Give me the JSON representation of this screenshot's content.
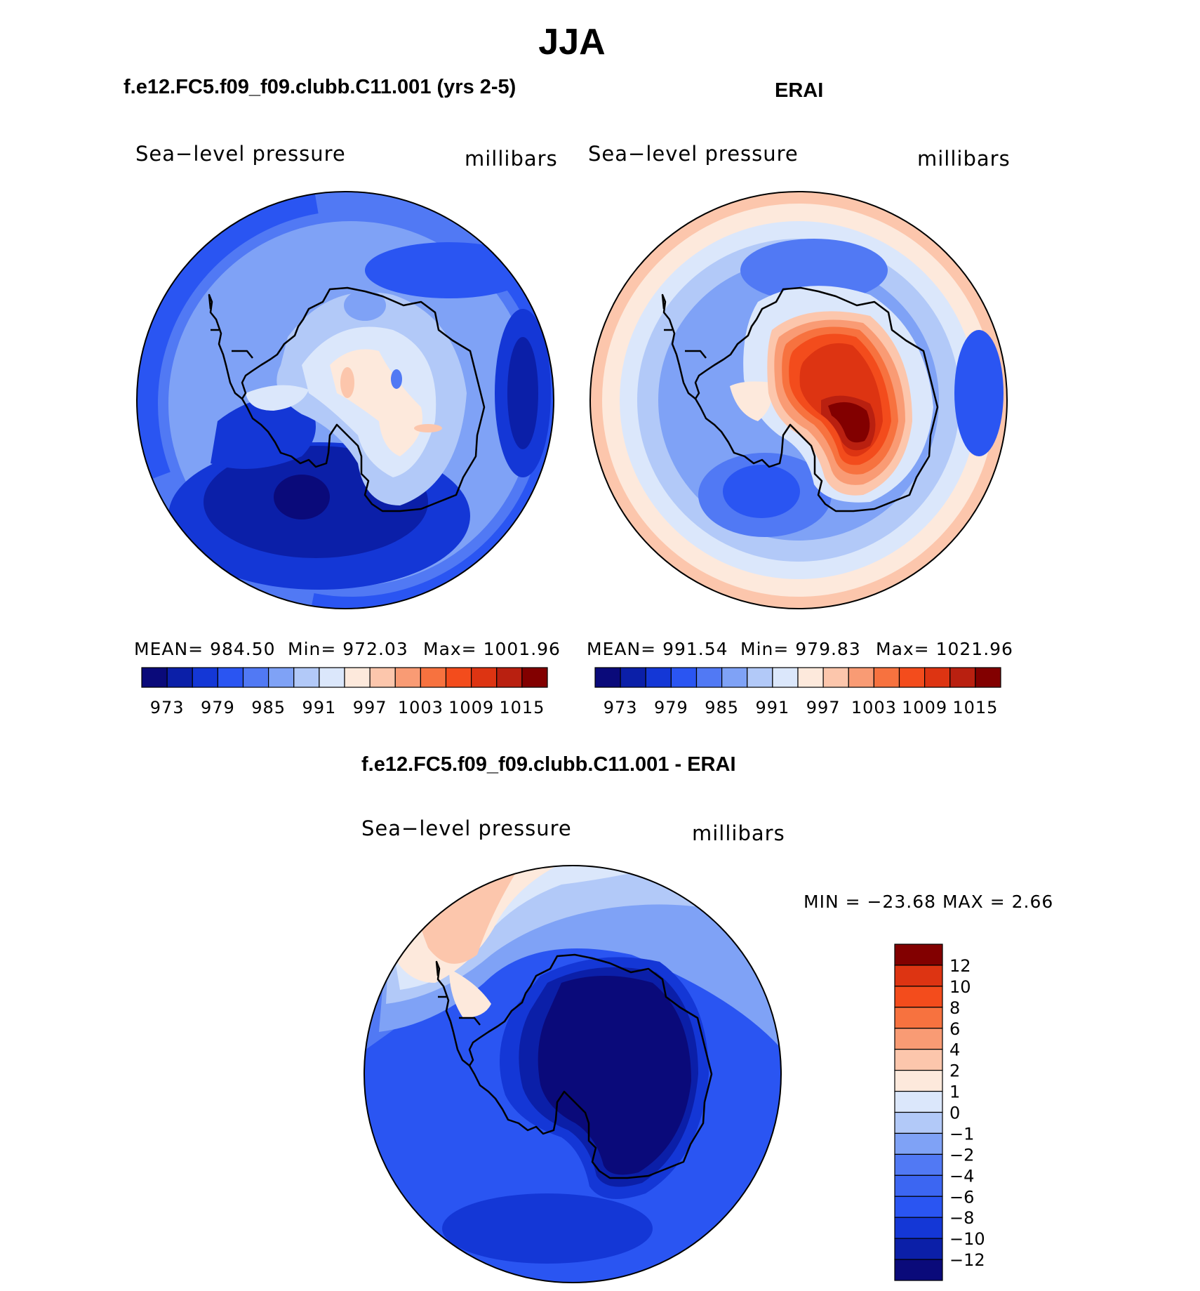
{
  "page": {
    "title": "JJA"
  },
  "panels": {
    "model": {
      "title": "f.e12.FC5.f09_f09.clubb.C11.001 (yrs 2-5)",
      "var_label": "Sea−level pressure",
      "units": "millibars",
      "mean_text": "MEAN=  984.50",
      "min_text": "Min=  972.03",
      "max_text": "Max=  1001.96"
    },
    "obs": {
      "title": "ERAI",
      "var_label": "Sea−level pressure",
      "units": "millibars",
      "mean_text": "MEAN=  991.54",
      "min_text": "Min=  979.83",
      "max_text": "Max=  1021.96"
    },
    "diff": {
      "title": "f.e12.FC5.f09_f09.clubb.C11.001 - ERAI",
      "var_label": "Sea−level pressure",
      "units": "millibars",
      "minmax_text": "MIN  =  −23.68  MAX  =      2.66"
    }
  },
  "chart_data": [
    {
      "type": "contour-map",
      "projection": "south-polar-stereographic",
      "title": "f.e12.FC5.f09_f09.clubb.C11.001 (yrs 2-5)",
      "variable": "Sea-level pressure",
      "units": "millibars",
      "stats": {
        "mean": 984.5,
        "min": 972.03,
        "max": 1001.96
      },
      "colorbar": {
        "orientation": "horizontal",
        "levels": [
          973,
          976,
          979,
          982,
          985,
          988,
          991,
          994,
          997,
          1000,
          1003,
          1006,
          1009,
          1012,
          1015
        ],
        "tick_labels": [
          "973",
          "979",
          "985",
          "991",
          "997",
          "1003",
          "1009",
          "1015"
        ],
        "colors": [
          "#0a0a7a",
          "#0b1fa8",
          "#1437d6",
          "#2a55f2",
          "#5179f4",
          "#7fa2f6",
          "#b2c9f8",
          "#dbe7fb",
          "#fde9dc",
          "#fcc6ac",
          "#f99b74",
          "#f7723f",
          "#f34c1c",
          "#dd3412",
          "#b92010",
          "#820000"
        ]
      }
    },
    {
      "type": "contour-map",
      "projection": "south-polar-stereographic",
      "title": "ERAI",
      "variable": "Sea-level pressure",
      "units": "millibars",
      "stats": {
        "mean": 991.54,
        "min": 979.83,
        "max": 1021.96
      },
      "colorbar": {
        "orientation": "horizontal",
        "levels": [
          973,
          976,
          979,
          982,
          985,
          988,
          991,
          994,
          997,
          1000,
          1003,
          1006,
          1009,
          1012,
          1015
        ],
        "tick_labels": [
          "973",
          "979",
          "985",
          "991",
          "997",
          "1003",
          "1009",
          "1015"
        ],
        "colors": [
          "#0a0a7a",
          "#0b1fa8",
          "#1437d6",
          "#2a55f2",
          "#5179f4",
          "#7fa2f6",
          "#b2c9f8",
          "#dbe7fb",
          "#fde9dc",
          "#fcc6ac",
          "#f99b74",
          "#f7723f",
          "#f34c1c",
          "#dd3412",
          "#b92010",
          "#820000"
        ]
      }
    },
    {
      "type": "contour-map",
      "projection": "south-polar-stereographic",
      "title": "f.e12.FC5.f09_f09.clubb.C11.001 - ERAI",
      "variable": "Sea-level pressure",
      "units": "millibars",
      "stats": {
        "min": -23.68,
        "max": 2.66
      },
      "colorbar": {
        "orientation": "vertical",
        "levels": [
          -12,
          -10,
          -8,
          -6,
          -4,
          -2,
          -1,
          0,
          1,
          2,
          4,
          6,
          8,
          10,
          12
        ],
        "tick_labels": [
          "12",
          "10",
          "8",
          "6",
          "4",
          "2",
          "1",
          "0",
          "−1",
          "−2",
          "−4",
          "−6",
          "−8",
          "−10",
          "−12"
        ],
        "colors": [
          "#0a0a7a",
          "#0b1fa8",
          "#1437d6",
          "#2a55f2",
          "#3c66f2",
          "#5179f4",
          "#7fa2f6",
          "#b2c9f8",
          "#dbe7fb",
          "#fde9dc",
          "#fcc6ac",
          "#f99b74",
          "#f7723f",
          "#f34c1c",
          "#dd3412",
          "#820000"
        ]
      }
    }
  ]
}
